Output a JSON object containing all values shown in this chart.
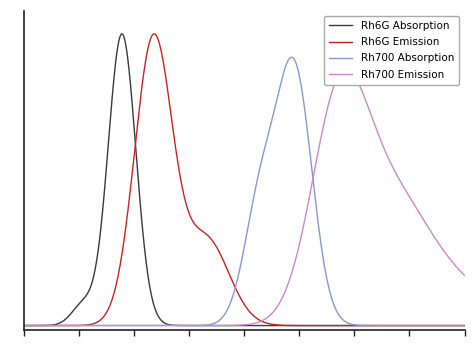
{
  "title": "",
  "background_color": "#ffffff",
  "legend_entries": [
    "Rh6G Absorption",
    "Rh6G Emission",
    "Rh700 Absorption",
    "Rh700 Emission"
  ],
  "colors": [
    "#3a3a3a",
    "#cc2222",
    "#8899cc",
    "#cc88cc"
  ],
  "xlim": [
    450,
    800
  ],
  "ylim": [
    -0.015,
    1.08
  ],
  "figsize": [
    4.74,
    3.51
  ],
  "dpi": 100
}
